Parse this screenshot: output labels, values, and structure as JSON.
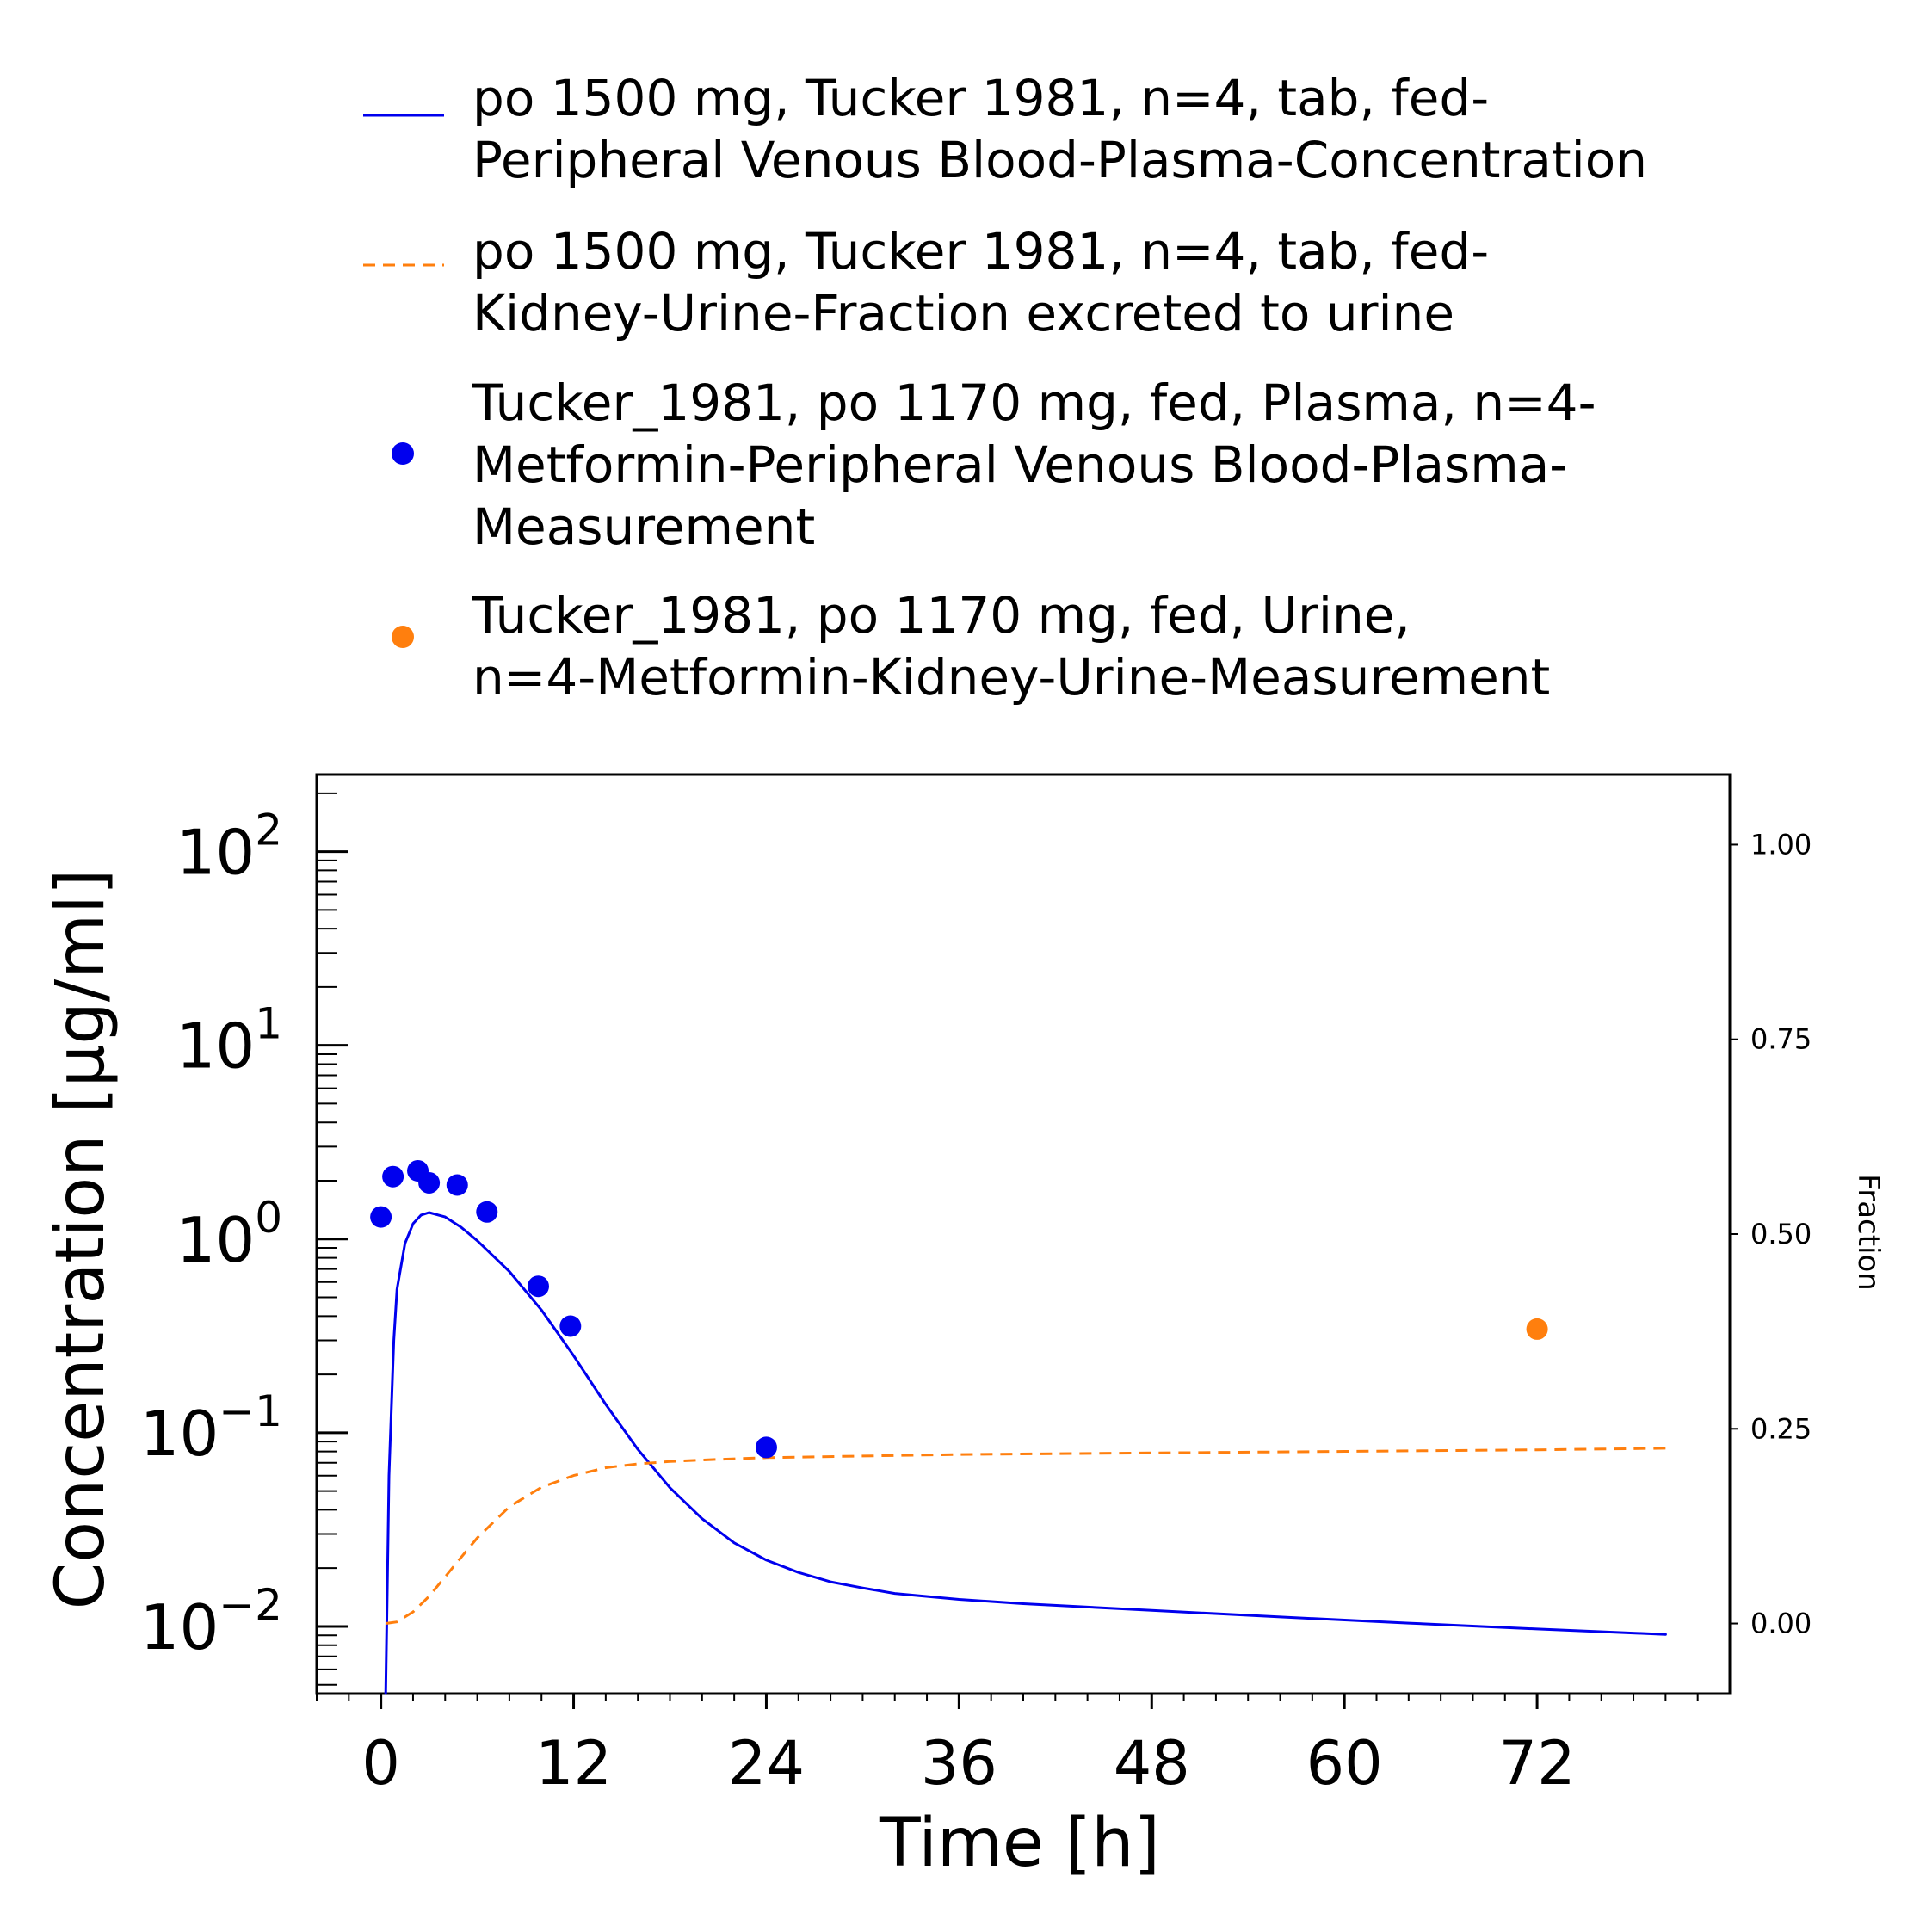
{
  "chart_data": {
    "type": "line",
    "xlabel": "Time [h]",
    "ylabel": "Concentration [µg/ml]",
    "y2label": "Fraction",
    "xlim": [
      -4,
      84
    ],
    "xticks": [
      0,
      12,
      24,
      36,
      48,
      60,
      72
    ],
    "ylim": [
      0.0045,
      250
    ],
    "yscale": "log",
    "yticks": [
      {
        "value": 0.01,
        "base": "10",
        "exp": "−2"
      },
      {
        "value": 0.1,
        "base": "10",
        "exp": "−1"
      },
      {
        "value": 1,
        "base": "10",
        "exp": "0"
      },
      {
        "value": 10,
        "base": "10",
        "exp": "1"
      },
      {
        "value": 100,
        "base": "10",
        "exp": "2"
      }
    ],
    "y2lim": [
      -0.09,
      1.09
    ],
    "y2ticks": [
      "0.00",
      "0.25",
      "0.50",
      "0.75",
      "1.00"
    ],
    "grid": false,
    "legend_position": "top",
    "series": [
      {
        "name_lines": [
          "po 1500 mg, Tucker 1981, n=4, tab, fed-",
          "Peripheral Venous Blood-Plasma-Concentration"
        ],
        "kind": "line",
        "style": "solid",
        "color": "#0000ee",
        "axis": "left",
        "x": [
          0.3,
          0.5,
          0.8,
          1.0,
          1.5,
          2.0,
          2.5,
          3.0,
          4.0,
          5.0,
          6.0,
          8.0,
          10.0,
          12.0,
          14.0,
          16.0,
          18.0,
          20.0,
          22.0,
          24.0,
          26.0,
          28.0,
          30.0,
          32.0,
          36.0,
          40.0,
          48.0,
          56.0,
          64.0,
          72.0,
          80.0
        ],
        "y": [
          0.0045,
          0.06,
          0.3,
          0.55,
          0.95,
          1.2,
          1.33,
          1.37,
          1.3,
          1.15,
          0.98,
          0.68,
          0.43,
          0.25,
          0.14,
          0.082,
          0.052,
          0.036,
          0.027,
          0.022,
          0.019,
          0.017,
          0.0158,
          0.0148,
          0.0138,
          0.0131,
          0.0121,
          0.0112,
          0.0104,
          0.0097,
          0.0091
        ]
      },
      {
        "name_lines": [
          "po 1500 mg, Tucker 1981, n=4, tab, fed-",
          "Kidney-Urine-Fraction excreted to urine"
        ],
        "kind": "line",
        "style": "dashed",
        "color": "#ff7f0e",
        "axis": "right",
        "x": [
          0.3,
          1.0,
          2.0,
          3.0,
          4.0,
          5.0,
          6.0,
          7.0,
          8.0,
          10.0,
          12.0,
          14.0,
          16.0,
          18.0,
          20.0,
          24.0,
          30.0,
          36.0,
          48.0,
          60.0,
          72.0,
          80.0
        ],
        "y": [
          0.0,
          0.002,
          0.015,
          0.035,
          0.06,
          0.085,
          0.11,
          0.13,
          0.15,
          0.175,
          0.19,
          0.2,
          0.205,
          0.208,
          0.21,
          0.213,
          0.215,
          0.217,
          0.219,
          0.221,
          0.223,
          0.225
        ]
      },
      {
        "name_lines": [
          "Tucker_1981, po 1170 mg, fed, Plasma, n=4-",
          "Metformin-Peripheral Venous Blood-Plasma-",
          "Measurement"
        ],
        "kind": "scatter",
        "color": "#0000ee",
        "axis": "left",
        "x": [
          0.0,
          0.75,
          2.3,
          3.0,
          4.75,
          6.6,
          9.8,
          11.8,
          24.0
        ],
        "y": [
          1.3,
          2.1,
          2.25,
          1.95,
          1.9,
          1.38,
          0.57,
          0.355,
          0.084
        ]
      },
      {
        "name_lines": [
          "Tucker_1981, po 1170 mg, fed, Urine,",
          "n=4-Metformin-Kidney-Urine-Measurement"
        ],
        "kind": "scatter",
        "color": "#ff7f0e",
        "axis": "right",
        "x": [
          72.0
        ],
        "y": [
          0.378
        ]
      }
    ]
  }
}
